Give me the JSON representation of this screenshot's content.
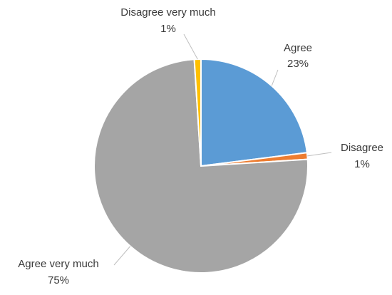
{
  "chart_data": {
    "type": "pie",
    "start_angle_deg": 0,
    "direction": "clockwise",
    "slices": [
      {
        "label": "Agree",
        "value": 23,
        "percent_label": "23%",
        "color": "#5b9bd5"
      },
      {
        "label": "Disagree",
        "value": 1,
        "percent_label": "1%",
        "color": "#ed7d31"
      },
      {
        "label": "Agree very much",
        "value": 75,
        "percent_label": "75%",
        "color": "#a5a5a5"
      },
      {
        "label": "Disagree very much",
        "value": 1,
        "percent_label": "1%",
        "color": "#ffc000"
      }
    ],
    "data_labels": "outside with leader lines",
    "legend": "none"
  }
}
